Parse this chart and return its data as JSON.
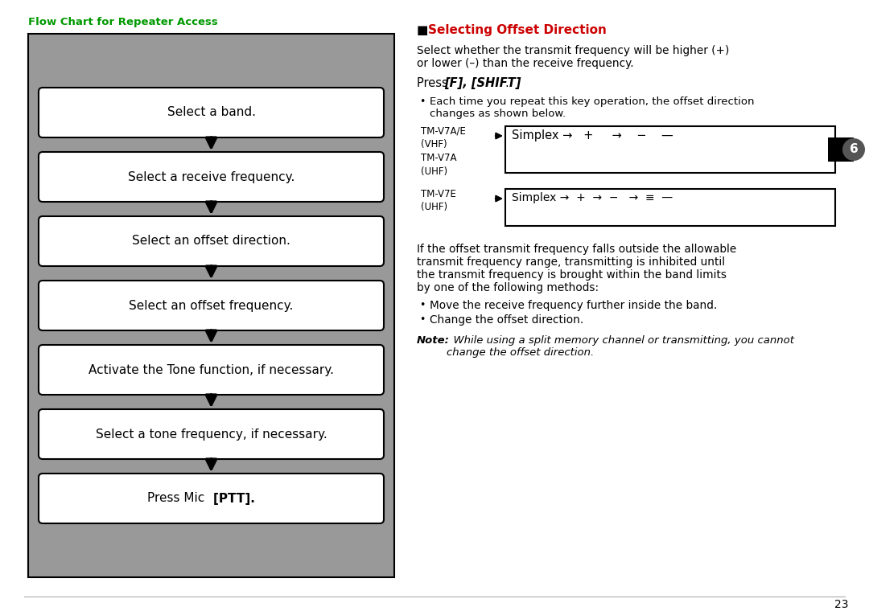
{
  "page_bg": "#ffffff",
  "left_panel_bg": "#999999",
  "left_panel_border": "#000000",
  "flowchart_title": "Flow Chart for Repeater Access",
  "flowchart_title_color": "#00aa00",
  "flowchart_boxes": [
    "Select a band.",
    "Select a receive frequency.",
    "Select an offset direction.",
    "Select an offset frequency.",
    "Activate the Tone function, if necessary.",
    "Select a tone frequency, if necessary.",
    "Press Mic [PTT]."
  ],
  "right_section_title_prefix": "■  ",
  "right_section_title_text": "Selecting Offset Direction",
  "right_section_title_color": "#cc0000",
  "body_text1_a": "Select whether the transmit frequency will be higher (+)",
  "body_text1_b": "or lower (–) than the receive frequency.",
  "press_normal": "Press ",
  "press_bold_italic": "[F], [SHIFT]",
  "press_end": ".",
  "bullet1_a": "Each time you repeat this key operation, the offset direction",
  "bullet1_b": "changes as shown below.",
  "diagram1_label": "TM-V7A/E\n(VHF)\nTM-V7A\n(UHF)",
  "diagram2_label": "TM-V7E\n(UHF)",
  "page_badge": "6",
  "body_text2_a": "If the offset transmit frequency falls outside the allowable",
  "body_text2_b": "transmit frequency range, transmitting is inhibited until",
  "body_text2_c": "the transmit frequency is brought within the band limits",
  "body_text2_d": "by one of the following methods:",
  "bullet2": "Move the receive frequency further inside the band.",
  "bullet3": "Change the offset direction.",
  "note_bold": "Note:",
  "note_italic_a": "  While using a split memory channel or transmitting, you cannot",
  "note_italic_b": "change the offset direction.",
  "page_number": "23",
  "green_color": "#009900",
  "red_color": "#cc0000",
  "black": "#000000",
  "white": "#ffffff",
  "gray_medium": "#999999",
  "gray_light": "#bbbbbb",
  "gray_dark": "#555555"
}
